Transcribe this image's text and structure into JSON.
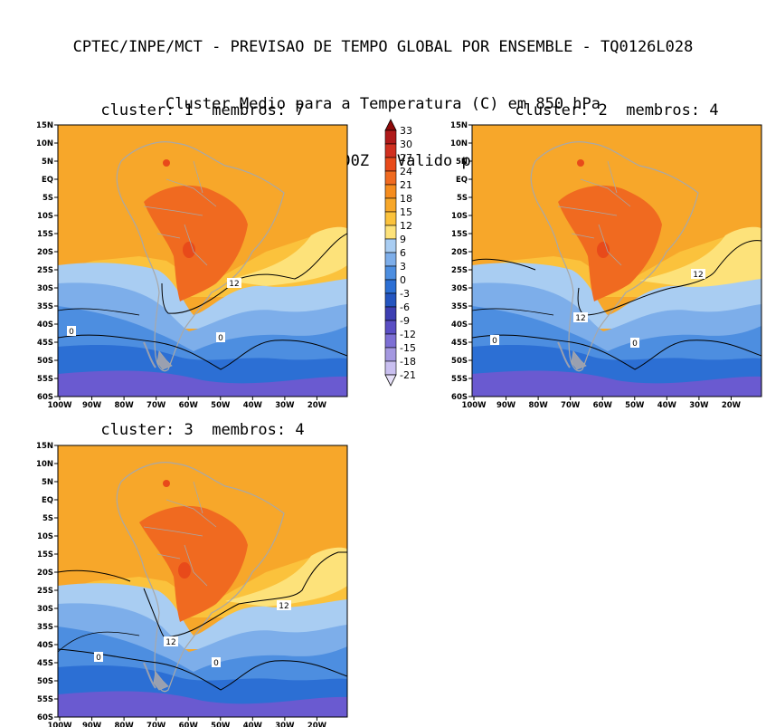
{
  "header": {
    "line1": "CPTEC/INPE/MCT - PREVISAO DE TEMPO GLOBAL POR ENSEMBLE - TQ0126L028",
    "line2": "Cluster Medio para a Temperatura (C) em 850 hPa",
    "line3": "Previsao de: 2020120200Z   Valido para: 2020121006Z"
  },
  "panels": [
    {
      "title": "cluster: 1  membros: 7"
    },
    {
      "title": "cluster: 2  membros: 4"
    },
    {
      "title": "cluster: 3  membros: 4"
    }
  ],
  "lat_labels": [
    "15N",
    "10N",
    "5N",
    "EQ",
    "5S",
    "10S",
    "15S",
    "20S",
    "25S",
    "30S",
    "35S",
    "40S",
    "45S",
    "50S",
    "55S",
    "60S"
  ],
  "lon_labels": [
    "100W",
    "90W",
    "80W",
    "70W",
    "60W",
    "50W",
    "40W",
    "30W",
    "20W"
  ],
  "contour_labels": {
    "c12": "12",
    "c0": "0"
  },
  "colorbar": {
    "levels": [
      "33",
      "30",
      "27",
      "24",
      "21",
      "18",
      "15",
      "12",
      "9",
      "6",
      "3",
      "0",
      "-3",
      "-6",
      "-9",
      "-12",
      "-15",
      "-18",
      "-21"
    ],
    "colors": [
      "#8e0a0a",
      "#b01a1a",
      "#d03020",
      "#e84a1a",
      "#f06a20",
      "#f58c1e",
      "#f7a72a",
      "#fbc23c",
      "#fde27a",
      "#a9cdf2",
      "#7daeea",
      "#4d8ee0",
      "#2c6fd4",
      "#2455c0",
      "#3d3fb2",
      "#5a4ec4",
      "#7d6fd4",
      "#a498e0",
      "#c9bff0",
      "#e6e0f8"
    ]
  },
  "colors": {
    "orange": "#f7a72a",
    "light_orange": "#fbc23c",
    "yellow": "#fde27a",
    "red_orange": "#f06a20",
    "red": "#e84a1a",
    "light_blue": "#a9cdf2",
    "mid_blue": "#7daeea",
    "blue": "#4d8ee0",
    "dark_blue": "#2c6fd4",
    "purple": "#6a5ad0",
    "land_line": "#a8a8a8"
  }
}
